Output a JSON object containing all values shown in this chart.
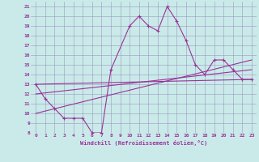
{
  "xlabel": "Windchill (Refroidissement éolien,°C)",
  "xlim": [
    -0.5,
    23.5
  ],
  "ylim": [
    8,
    21.5
  ],
  "yticks": [
    8,
    9,
    10,
    11,
    12,
    13,
    14,
    15,
    16,
    17,
    18,
    19,
    20,
    21
  ],
  "xticks": [
    0,
    1,
    2,
    3,
    4,
    5,
    6,
    7,
    8,
    9,
    10,
    11,
    12,
    13,
    14,
    15,
    16,
    17,
    18,
    19,
    20,
    21,
    22,
    23
  ],
  "background_color": "#caeaea",
  "grid_color": "#9999bb",
  "line_color": "#993399",
  "main_series": {
    "x": [
      0,
      1,
      2,
      3,
      4,
      5,
      6,
      7,
      8,
      10,
      11,
      12,
      13,
      14,
      15,
      16,
      17,
      18,
      19,
      20,
      21,
      22,
      23
    ],
    "y": [
      13,
      11.5,
      10.5,
      9.5,
      9.5,
      9.5,
      8.0,
      8.0,
      14.5,
      19.0,
      20.0,
      19.0,
      18.5,
      21.0,
      19.5,
      17.5,
      15.0,
      14.0,
      15.5,
      15.5,
      14.5,
      13.5,
      13.5
    ]
  },
  "trend_lines": [
    {
      "x": [
        0,
        23
      ],
      "y": [
        13.0,
        13.5
      ]
    },
    {
      "x": [
        0,
        23
      ],
      "y": [
        12.0,
        14.5
      ]
    },
    {
      "x": [
        0,
        23
      ],
      "y": [
        10.0,
        15.5
      ]
    }
  ]
}
